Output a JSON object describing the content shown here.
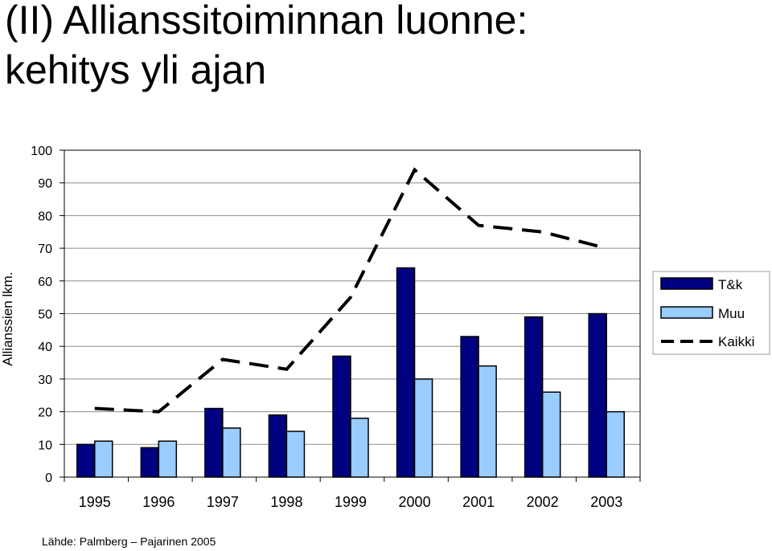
{
  "title_lines": [
    "(II) Allianssitoiminnan luonne:",
    "kehitys yli ajan"
  ],
  "source": "Lähde: Palmberg – Pajarinen 2005",
  "chart_data": {
    "type": "bar",
    "title": "",
    "ylabel": "Allianssien lkm.",
    "xlabel": "",
    "ylim": [
      0,
      100
    ],
    "yticks": [
      0,
      10,
      20,
      30,
      40,
      50,
      60,
      70,
      80,
      90,
      100
    ],
    "categories": [
      "1995",
      "1996",
      "1997",
      "1998",
      "1999",
      "2000",
      "2001",
      "2002",
      "2003"
    ],
    "series": [
      {
        "name": "T&k",
        "kind": "bar",
        "color": "#000080",
        "values": [
          10,
          9,
          21,
          19,
          37,
          64,
          43,
          49,
          50
        ]
      },
      {
        "name": "Muu",
        "kind": "bar",
        "color": "#99ccff",
        "values": [
          11,
          11,
          15,
          14,
          18,
          30,
          34,
          26,
          20
        ]
      },
      {
        "name": "Kaikki",
        "kind": "line",
        "style": "dashed",
        "color": "#000000",
        "values": [
          21,
          20,
          36,
          33,
          55,
          94,
          77,
          75,
          70
        ]
      }
    ],
    "grid": true,
    "legend_position": "right"
  }
}
